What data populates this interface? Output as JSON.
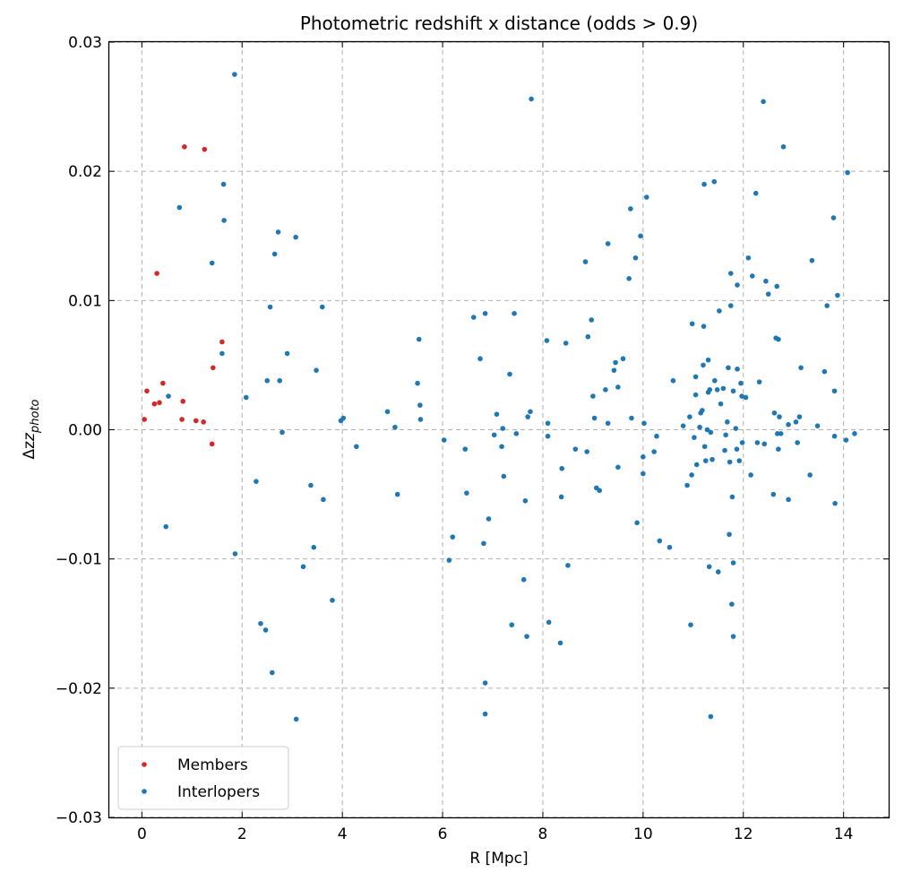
{
  "chart_data": {
    "type": "scatter",
    "title": "Photometric redshift x distance (odds > 0.9)",
    "xlabel": "R [Mpc]",
    "ylabel_symbol": "Δz",
    "ylabel_subscript": "photo",
    "xlim": [
      -0.65,
      14.9
    ],
    "ylim": [
      -0.03,
      0.03
    ],
    "xticks": [
      0,
      2,
      4,
      6,
      8,
      10,
      12,
      14
    ],
    "yticks": [
      -0.03,
      -0.02,
      -0.01,
      0.0,
      0.01,
      0.02,
      0.03
    ],
    "xtick_labels": [
      "0",
      "2",
      "4",
      "6",
      "8",
      "10",
      "12",
      "14"
    ],
    "ytick_labels": [
      "−0.03",
      "−0.02",
      "−0.01",
      "0.00",
      "0.01",
      "0.02",
      "0.03"
    ],
    "grid": true,
    "legend_position": "bottom-left",
    "series": [
      {
        "name": "Members",
        "color": "#d62728",
        "points": [
          [
            0.05,
            0.0008
          ],
          [
            0.1,
            0.003
          ],
          [
            0.25,
            0.002
          ],
          [
            0.3,
            0.0121
          ],
          [
            0.35,
            0.0021
          ],
          [
            0.42,
            0.0036
          ],
          [
            0.8,
            0.0008
          ],
          [
            0.82,
            0.0022
          ],
          [
            0.85,
            0.0219
          ],
          [
            1.08,
            0.0007
          ],
          [
            1.23,
            0.0006
          ],
          [
            1.25,
            0.0217
          ],
          [
            1.4,
            -0.0011
          ],
          [
            1.42,
            0.0048
          ],
          [
            1.6,
            0.0068
          ]
        ]
      },
      {
        "name": "Interlopers",
        "color": "#1f77b4",
        "points": [
          [
            0.48,
            -0.0075
          ],
          [
            0.53,
            0.0026
          ],
          [
            0.75,
            0.0172
          ],
          [
            1.4,
            0.0129
          ],
          [
            1.6,
            0.0059
          ],
          [
            1.63,
            0.019
          ],
          [
            1.64,
            0.0162
          ],
          [
            1.85,
            0.0275
          ],
          [
            1.86,
            -0.0096
          ],
          [
            2.08,
            0.0025
          ],
          [
            2.28,
            -0.004
          ],
          [
            2.37,
            -0.015
          ],
          [
            2.47,
            -0.0155
          ],
          [
            2.5,
            0.0038
          ],
          [
            2.56,
            0.0095
          ],
          [
            2.6,
            -0.0188
          ],
          [
            2.65,
            0.0136
          ],
          [
            2.72,
            0.0153
          ],
          [
            2.75,
            0.0038
          ],
          [
            2.8,
            -0.0002
          ],
          [
            2.9,
            0.0059
          ],
          [
            3.07,
            0.0149
          ],
          [
            3.08,
            -0.0224
          ],
          [
            3.22,
            -0.0106
          ],
          [
            3.37,
            -0.0043
          ],
          [
            3.43,
            -0.0091
          ],
          [
            3.48,
            0.0046
          ],
          [
            3.6,
            0.0095
          ],
          [
            3.62,
            -0.0054
          ],
          [
            3.8,
            -0.0132
          ],
          [
            3.97,
            0.0007
          ],
          [
            4.02,
            0.0009
          ],
          [
            4.28,
            -0.0013
          ],
          [
            4.9,
            0.0014
          ],
          [
            5.05,
            0.0002
          ],
          [
            5.1,
            -0.005
          ],
          [
            5.5,
            0.0036
          ],
          [
            5.53,
            0.007
          ],
          [
            5.55,
            0.0019
          ],
          [
            5.56,
            0.0008
          ],
          [
            6.03,
            -0.0008
          ],
          [
            6.13,
            -0.0101
          ],
          [
            6.2,
            -0.0083
          ],
          [
            6.45,
            -0.0015
          ],
          [
            6.48,
            -0.0049
          ],
          [
            6.62,
            0.0087
          ],
          [
            6.75,
            0.0055
          ],
          [
            6.82,
            -0.0088
          ],
          [
            6.85,
            0.009
          ],
          [
            6.85,
            -0.0196
          ],
          [
            6.85,
            -0.022
          ],
          [
            6.92,
            -0.0069
          ],
          [
            7.03,
            -0.0004
          ],
          [
            7.08,
            0.0012
          ],
          [
            7.18,
            -0.0013
          ],
          [
            7.22,
            -0.0036
          ],
          [
            7.2,
            0.0001
          ],
          [
            7.34,
            0.0043
          ],
          [
            7.38,
            -0.0151
          ],
          [
            7.43,
            0.009
          ],
          [
            7.47,
            -0.0003
          ],
          [
            7.62,
            -0.0116
          ],
          [
            7.65,
            -0.0055
          ],
          [
            7.68,
            -0.016
          ],
          [
            7.7,
            0.001
          ],
          [
            7.75,
            0.0014
          ],
          [
            7.77,
            0.0256
          ],
          [
            8.08,
            0.0069
          ],
          [
            8.1,
            -0.0005
          ],
          [
            8.1,
            0.0005
          ],
          [
            8.12,
            -0.0149
          ],
          [
            8.35,
            -0.0165
          ],
          [
            8.37,
            -0.0052
          ],
          [
            8.38,
            -0.003
          ],
          [
            8.46,
            0.0067
          ],
          [
            8.5,
            -0.0105
          ],
          [
            8.65,
            -0.0015
          ],
          [
            8.85,
            0.013
          ],
          [
            8.88,
            -0.0017
          ],
          [
            8.9,
            0.0072
          ],
          [
            8.97,
            0.0085
          ],
          [
            9.0,
            0.0026
          ],
          [
            9.03,
            0.0009
          ],
          [
            9.07,
            -0.0045
          ],
          [
            9.13,
            -0.0047
          ],
          [
            9.25,
            0.0031
          ],
          [
            9.3,
            0.0144
          ],
          [
            9.3,
            0.0005
          ],
          [
            9.42,
            0.0046
          ],
          [
            9.45,
            0.0052
          ],
          [
            9.5,
            0.0033
          ],
          [
            9.5,
            -0.0029
          ],
          [
            9.6,
            0.0055
          ],
          [
            9.72,
            0.0117
          ],
          [
            9.75,
            0.0171
          ],
          [
            9.77,
            0.0009
          ],
          [
            9.85,
            0.0133
          ],
          [
            9.88,
            -0.0072
          ],
          [
            9.95,
            0.015
          ],
          [
            10.0,
            -0.0021
          ],
          [
            10.0,
            -0.0034
          ],
          [
            10.02,
            0.0005
          ],
          [
            10.07,
            0.018
          ],
          [
            10.22,
            -0.0017
          ],
          [
            10.27,
            -0.0005
          ],
          [
            10.33,
            -0.0086
          ],
          [
            10.53,
            -0.0091
          ],
          [
            10.6,
            0.0038
          ],
          [
            10.8,
            0.0003
          ],
          [
            10.88,
            -0.0043
          ],
          [
            10.93,
            0.001
          ],
          [
            10.95,
            -0.0151
          ],
          [
            10.97,
            -0.0035
          ],
          [
            10.98,
            0.0082
          ],
          [
            11.02,
            -0.0006
          ],
          [
            11.05,
            0.0041
          ],
          [
            11.05,
            0.0027
          ],
          [
            11.07,
            -0.0027
          ],
          [
            11.13,
            0.0002
          ],
          [
            11.15,
            0.0013
          ],
          [
            11.18,
            0.0015
          ],
          [
            11.2,
            0.005
          ],
          [
            11.21,
            0.008
          ],
          [
            11.22,
            0.019
          ],
          [
            11.23,
            -0.0013
          ],
          [
            11.25,
            -0.0024
          ],
          [
            11.28,
            0.0
          ],
          [
            11.3,
            0.0054
          ],
          [
            11.3,
            0.0029
          ],
          [
            11.32,
            -0.0106
          ],
          [
            11.33,
            0.0031
          ],
          [
            11.35,
            -0.0002
          ],
          [
            11.35,
            -0.0222
          ],
          [
            11.38,
            -0.0023
          ],
          [
            11.42,
            0.0192
          ],
          [
            11.43,
            0.0038
          ],
          [
            11.48,
            0.0031
          ],
          [
            11.5,
            -0.011
          ],
          [
            11.52,
            0.0092
          ],
          [
            11.55,
            0.002
          ],
          [
            11.6,
            0.0032
          ],
          [
            11.63,
            -0.0016
          ],
          [
            11.65,
            -0.0004
          ],
          [
            11.68,
            0.0006
          ],
          [
            11.7,
            0.0048
          ],
          [
            11.72,
            -0.0081
          ],
          [
            11.73,
            -0.0025
          ],
          [
            11.75,
            0.0121
          ],
          [
            11.75,
            0.0096
          ],
          [
            11.77,
            -0.0135
          ],
          [
            11.78,
            -0.0052
          ],
          [
            11.8,
            0.003
          ],
          [
            11.8,
            -0.0103
          ],
          [
            11.8,
            -0.016
          ],
          [
            11.85,
            0.0001
          ],
          [
            11.87,
            -0.0015
          ],
          [
            11.88,
            0.0047
          ],
          [
            11.88,
            0.0112
          ],
          [
            11.92,
            -0.0024
          ],
          [
            11.95,
            0.0036
          ],
          [
            11.97,
            0.0026
          ],
          [
            11.98,
            -0.001
          ],
          [
            12.05,
            0.0025
          ],
          [
            12.1,
            0.0133
          ],
          [
            12.15,
            -0.0035
          ],
          [
            12.18,
            0.0119
          ],
          [
            12.25,
            0.0183
          ],
          [
            12.28,
            -0.001
          ],
          [
            12.32,
            0.0037
          ],
          [
            12.4,
            0.0254
          ],
          [
            12.42,
            -0.0011
          ],
          [
            12.45,
            0.0115
          ],
          [
            12.5,
            0.0105
          ],
          [
            12.6,
            -0.005
          ],
          [
            12.62,
            0.0013
          ],
          [
            12.65,
            0.0071
          ],
          [
            12.67,
            0.0111
          ],
          [
            12.7,
            0.007
          ],
          [
            12.68,
            -0.0003
          ],
          [
            12.7,
            -0.0015
          ],
          [
            12.72,
            0.001
          ],
          [
            12.75,
            -0.0003
          ],
          [
            12.8,
            0.0219
          ],
          [
            12.9,
            -0.0054
          ],
          [
            12.9,
            0.0004
          ],
          [
            13.05,
            0.0006
          ],
          [
            13.08,
            -0.001
          ],
          [
            13.12,
            0.001
          ],
          [
            13.15,
            0.0048
          ],
          [
            13.33,
            -0.0035
          ],
          [
            13.37,
            0.0131
          ],
          [
            13.48,
            0.0003
          ],
          [
            13.62,
            0.0045
          ],
          [
            13.67,
            0.0096
          ],
          [
            13.8,
            0.0164
          ],
          [
            13.82,
            -0.0005
          ],
          [
            13.82,
            0.003
          ],
          [
            13.83,
            -0.0057
          ],
          [
            13.88,
            0.0104
          ],
          [
            14.05,
            -0.0008
          ],
          [
            14.08,
            0.0199
          ],
          [
            14.22,
            -0.0003
          ]
        ]
      }
    ]
  }
}
